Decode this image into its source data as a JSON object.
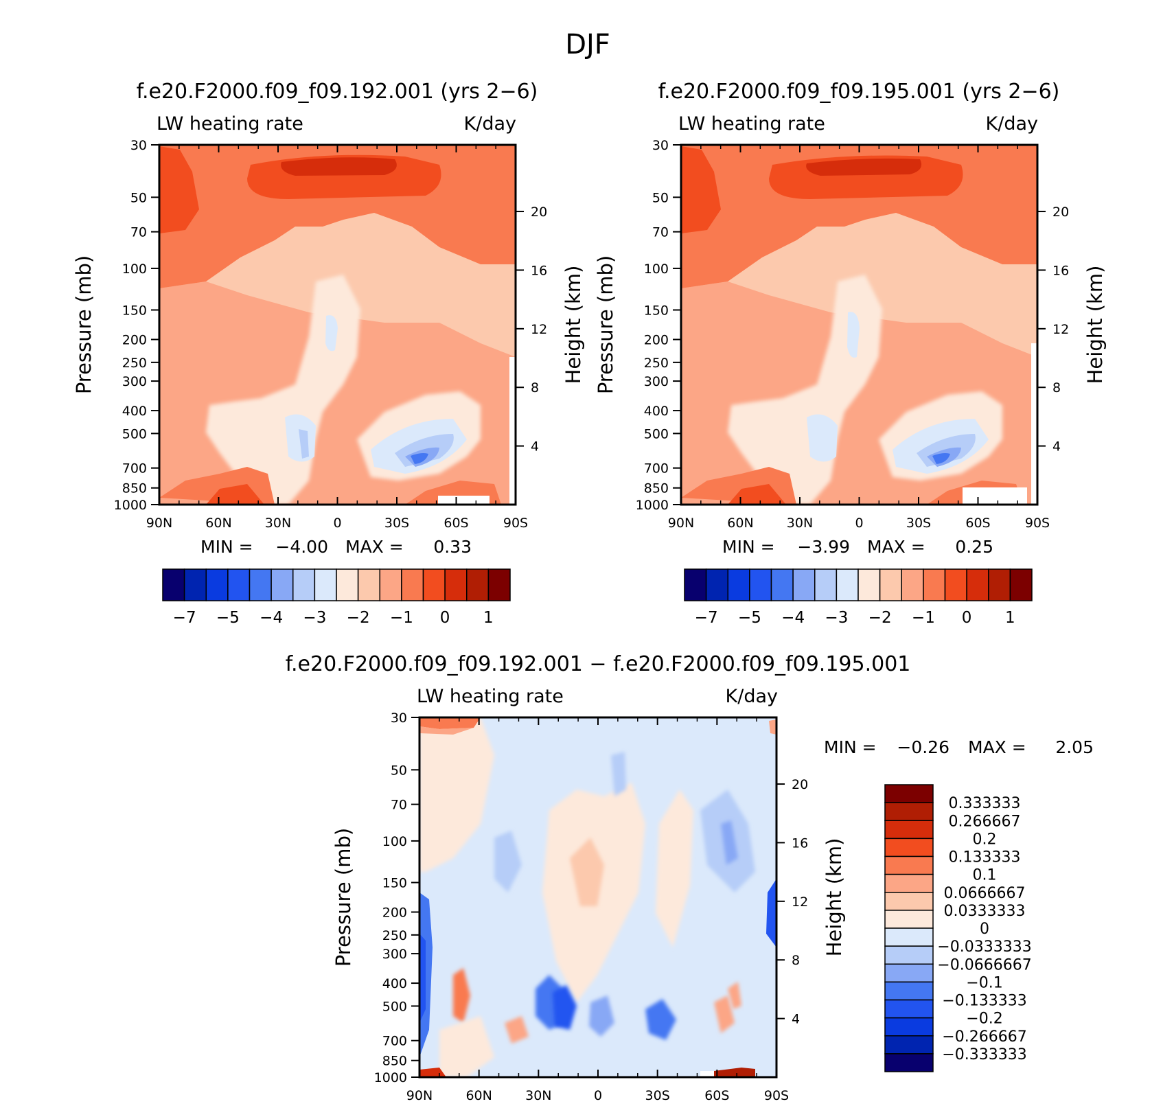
{
  "figure": {
    "title": "DJF"
  },
  "chart_data": [
    {
      "type": "heatmap",
      "title": "f.e20.F2000.f09_f09.192.001 (yrs 2−6)",
      "left_label": "LW heating rate",
      "right_label": "K/day",
      "xlabel": "",
      "ylabel": "Pressure (mb)",
      "y2label": "Height (km)",
      "x_ticks": [
        "90N",
        "60N",
        "30N",
        "0",
        "30S",
        "60S",
        "90S"
      ],
      "y_ticks": [
        30,
        50,
        70,
        100,
        150,
        200,
        250,
        300,
        400,
        500,
        700,
        850,
        1000
      ],
      "height_ticks": [
        20,
        16,
        12,
        8,
        4
      ],
      "ylim": [
        30,
        1000
      ],
      "y_scale": "log, inverted",
      "stats": {
        "min_label": "MIN =",
        "min_value": "−4.00",
        "max_label": "MAX =",
        "max_value": "0.33"
      },
      "colorbar": {
        "orientation": "horizontal",
        "tick_labels": [
          "−7",
          "−5",
          "−4",
          "−3",
          "−2",
          "−1",
          "0",
          "1"
        ],
        "colors": [
          "#08006e",
          "#0024b0",
          "#0a3be0",
          "#2254f0",
          "#4477f2",
          "#88a8f5",
          "#b6cdf8",
          "#dbe9fb",
          "#fde9db",
          "#fcc9ad",
          "#fca686",
          "#f97a50",
          "#f24d1f",
          "#d62d0b",
          "#b01e04",
          "#7c0000"
        ]
      },
      "field_description_levels": {
        "stratosphere_band": -1.0,
        "upper_core": -0.5,
        "mid_troposphere": -2.0,
        "lower_blue_minimum": -4.0
      }
    },
    {
      "type": "heatmap",
      "title": "f.e20.F2000.f09_f09.195.001 (yrs 2−6)",
      "left_label": "LW heating rate",
      "right_label": "K/day",
      "xlabel": "",
      "ylabel": "Pressure (mb)",
      "y2label": "Height (km)",
      "x_ticks": [
        "90N",
        "60N",
        "30N",
        "0",
        "30S",
        "60S",
        "90S"
      ],
      "y_ticks": [
        30,
        50,
        70,
        100,
        150,
        200,
        250,
        300,
        400,
        500,
        700,
        850,
        1000
      ],
      "height_ticks": [
        20,
        16,
        12,
        8,
        4
      ],
      "ylim": [
        30,
        1000
      ],
      "y_scale": "log, inverted",
      "stats": {
        "min_label": "MIN =",
        "min_value": "−3.99",
        "max_label": "MAX =",
        "max_value": "0.25"
      },
      "colorbar": {
        "orientation": "horizontal",
        "tick_labels": [
          "−7",
          "−5",
          "−4",
          "−3",
          "−2",
          "−1",
          "0",
          "1"
        ],
        "colors": [
          "#08006e",
          "#0024b0",
          "#0a3be0",
          "#2254f0",
          "#4477f2",
          "#88a8f5",
          "#b6cdf8",
          "#dbe9fb",
          "#fde9db",
          "#fcc9ad",
          "#fca686",
          "#f97a50",
          "#f24d1f",
          "#d62d0b",
          "#b01e04",
          "#7c0000"
        ]
      }
    },
    {
      "type": "heatmap",
      "title": "f.e20.F2000.f09_f09.192.001 − f.e20.F2000.f09_f09.195.001",
      "left_label": "LW heating rate",
      "right_label": "K/day",
      "xlabel": "",
      "ylabel": "Pressure (mb)",
      "y2label": "Height (km)",
      "x_ticks": [
        "90N",
        "60N",
        "30N",
        "0",
        "30S",
        "60S",
        "90S"
      ],
      "y_ticks": [
        30,
        50,
        70,
        100,
        150,
        200,
        250,
        300,
        400,
        500,
        700,
        850,
        1000
      ],
      "height_ticks": [
        20,
        16,
        12,
        8,
        4
      ],
      "ylim": [
        30,
        1000
      ],
      "y_scale": "log, inverted",
      "stats": {
        "min_label": "MIN =",
        "min_value": "−0.26",
        "max_label": "MAX =",
        "max_value": "2.05"
      },
      "colorbar": {
        "orientation": "vertical",
        "tick_labels": [
          "0.333333",
          "0.266667",
          "0.2",
          "0.133333",
          "0.1",
          "0.0666667",
          "0.0333333",
          "0",
          "−0.0333333",
          "−0.0666667",
          "−0.1",
          "−0.133333",
          "−0.2",
          "−0.266667",
          "−0.333333"
        ],
        "colors": [
          "#7c0000",
          "#b01e04",
          "#d62d0b",
          "#f24d1f",
          "#f97a50",
          "#fca686",
          "#fcc9ad",
          "#fde9db",
          "#dbe9fb",
          "#b6cdf8",
          "#88a8f5",
          "#4477f2",
          "#2254f0",
          "#0a3be0",
          "#0024b0",
          "#08006e"
        ]
      }
    }
  ]
}
